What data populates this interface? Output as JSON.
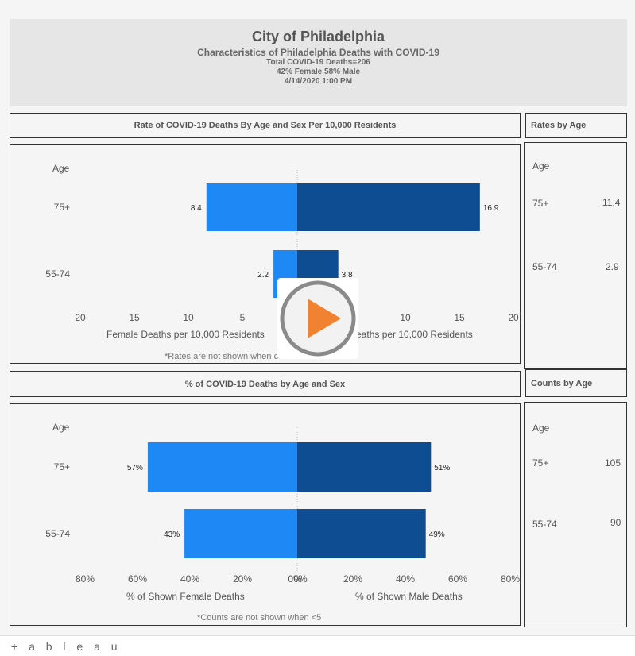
{
  "header": {
    "title": "City of Philadelphia",
    "subtitle": "Characteristics of Philadelphia Deaths with COVID-19",
    "total": "Total COVID-19 Deaths=206",
    "sex_split": "42% Female 58% Male",
    "timestamp": "4/14/2020 1:00 PM"
  },
  "rates_panel": {
    "title": "Rate of COVID-19 Deaths By Age and Sex Per 10,000 Residents",
    "age_label": "Age",
    "female_axis_label": "Female Deaths per 10,000 Residents",
    "male_axis_label": "Male Deaths per 10,000 Residents",
    "note": "*Rates are not shown when case counts are <5"
  },
  "rates_side": {
    "title": "Rates by Age",
    "age_label": "Age",
    "rows": [
      {
        "age": "75+",
        "value": "11.4"
      },
      {
        "age": "55-74",
        "value": "2.9"
      }
    ]
  },
  "pct_panel": {
    "title": "% of COVID-19 Deaths by Age and Sex",
    "age_label": "Age",
    "female_axis_label": "% of Shown Female Deaths",
    "male_axis_label": "% of Shown Male Deaths",
    "note": "*Counts are not shown when <5"
  },
  "counts_side": {
    "title": "Counts by Age",
    "age_label": "Age",
    "rows": [
      {
        "age": "75+",
        "value": "105"
      },
      {
        "age": "55-74",
        "value": "90"
      }
    ]
  },
  "colors": {
    "female": "#1e88f5",
    "male": "#0f4d92"
  },
  "footer": {
    "logo_text": "+ a b l e a u"
  },
  "chart_data": [
    {
      "type": "bar",
      "title": "Rate of COVID-19 Deaths By Age and Sex Per 10,000 Residents",
      "categories": [
        "75+",
        "55-74"
      ],
      "series": [
        {
          "name": "Female",
          "values": [
            8.4,
            2.2
          ],
          "labels": [
            "8.4",
            "2.2"
          ]
        },
        {
          "name": "Male",
          "values": [
            16.9,
            3.8
          ],
          "labels": [
            "16.9",
            "3.8"
          ]
        }
      ],
      "xlim": [
        0,
        20
      ],
      "female_ticks": [
        "20",
        "15",
        "10",
        "5"
      ],
      "male_ticks": [
        "10",
        "15",
        "20"
      ],
      "orientation": "horizontal-diverging"
    },
    {
      "type": "bar",
      "title": "% of COVID-19 Deaths by Age and Sex",
      "categories": [
        "75+",
        "55-74"
      ],
      "series": [
        {
          "name": "Female",
          "values": [
            57,
            43
          ],
          "labels": [
            "57%",
            "43%"
          ]
        },
        {
          "name": "Male",
          "values": [
            51,
            49
          ],
          "labels": [
            "51%",
            "49%"
          ]
        }
      ],
      "xlim": [
        0,
        80
      ],
      "female_ticks": [
        "80%",
        "60%",
        "40%",
        "20%",
        "0%"
      ],
      "male_ticks": [
        "0%",
        "20%",
        "40%",
        "60%",
        "80%"
      ],
      "orientation": "horizontal-diverging"
    }
  ]
}
